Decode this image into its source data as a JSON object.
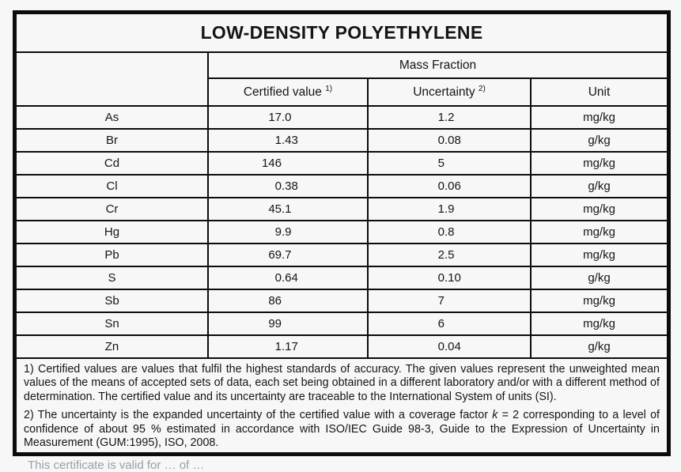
{
  "title": "LOW-DENSITY POLYETHYLENE",
  "table": {
    "group_header": "Mass Fraction",
    "columns": [
      {
        "label": "Certified value",
        "sup": "1)"
      },
      {
        "label": "Uncertainty",
        "sup": "2)"
      },
      {
        "label": "Unit",
        "sup": ""
      }
    ],
    "rows": [
      {
        "element": "As",
        "certified_value": "17.0",
        "uncertainty": "1.2",
        "unit": "mg/kg"
      },
      {
        "element": "Br",
        "certified_value": "1.43",
        "uncertainty": "0.08",
        "unit": "g/kg"
      },
      {
        "element": "Cd",
        "certified_value": "146",
        "uncertainty": "5",
        "unit": "mg/kg"
      },
      {
        "element": "Cl",
        "certified_value": "0.38",
        "uncertainty": "0.06",
        "unit": "g/kg"
      },
      {
        "element": "Cr",
        "certified_value": "45.1",
        "uncertainty": "1.9",
        "unit": "mg/kg"
      },
      {
        "element": "Hg",
        "certified_value": "9.9",
        "uncertainty": "0.8",
        "unit": "mg/kg"
      },
      {
        "element": "Pb",
        "certified_value": "69.7",
        "uncertainty": "2.5",
        "unit": "mg/kg"
      },
      {
        "element": "S",
        "certified_value": "0.64",
        "uncertainty": "0.10",
        "unit": "g/kg"
      },
      {
        "element": "Sb",
        "certified_value": "86",
        "uncertainty": "7",
        "unit": "mg/kg"
      },
      {
        "element": "Sn",
        "certified_value": "99",
        "uncertainty": "6",
        "unit": "mg/kg"
      },
      {
        "element": "Zn",
        "certified_value": "1.17",
        "uncertainty": "0.04",
        "unit": "g/kg"
      }
    ]
  },
  "footnotes": {
    "note1": "1) Certified values are values that fulfil the highest standards of accuracy. The given values represent the unweighted mean values of the means of accepted sets of data, each set being obtained in a different laboratory and/or with a different method of determination. The certified value and its uncertainty are traceable to the International System of units (SI).",
    "note2_part1": "2) The uncertainty is the expanded uncertainty of the certified value with a coverage factor ",
    "note2_italic": "k",
    "note2_part2": " = 2 corresponding to a level of confidence of about 95 % estimated in accordance with ISO/IEC Guide 98-3, Guide to the Expression of Uncertainty in Measurement (GUM:1995), ISO, 2008."
  },
  "clipped_footer": "This certificate is valid for … of …",
  "colors": {
    "background": "#f7f7f7",
    "border": "#0c0c0c",
    "text": "#151515",
    "footer_gray": "#9aa0a6"
  }
}
